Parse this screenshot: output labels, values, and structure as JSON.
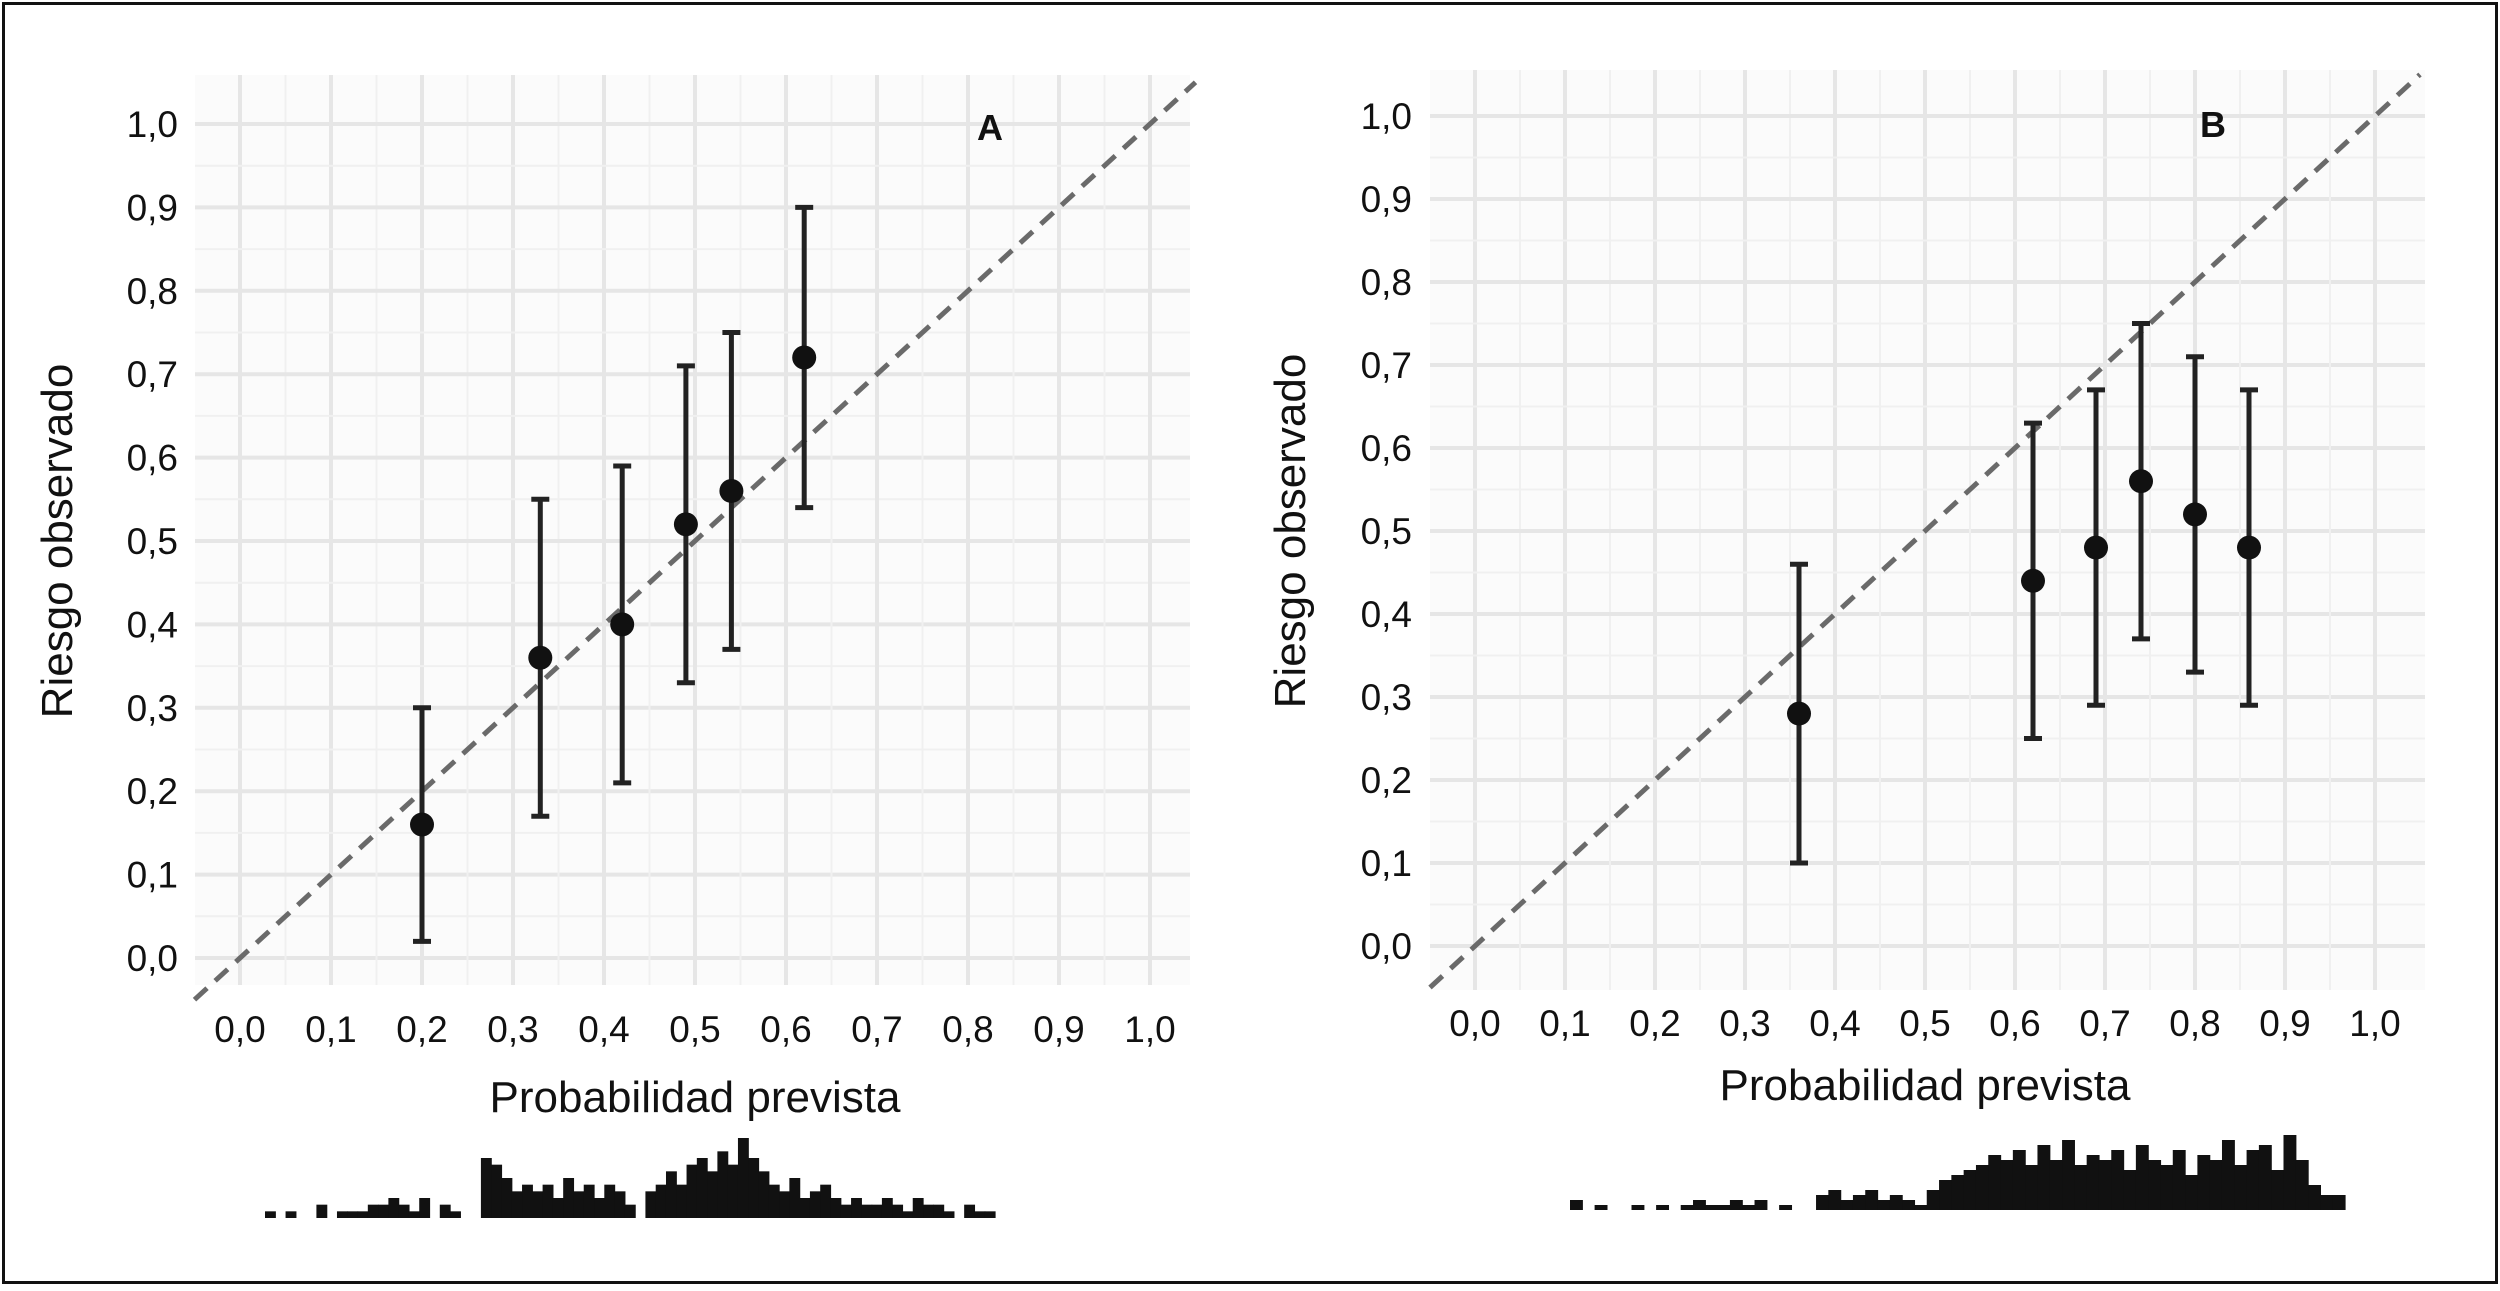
{
  "chart_data": [
    {
      "type": "scatter",
      "panel_label": "A",
      "xlabel": "Probabilidad prevista",
      "ylabel": "Riesgo observado",
      "xlim": [
        0.0,
        1.0
      ],
      "ylim": [
        0.0,
        1.0
      ],
      "x_ticks": [
        "0,0",
        "0,1",
        "0,2",
        "0,3",
        "0,4",
        "0,5",
        "0,6",
        "0,7",
        "0,8",
        "0,9",
        "1,0"
      ],
      "y_ticks": [
        "0,0",
        "0,1",
        "0,2",
        "0,3",
        "0,4",
        "0,5",
        "0,6",
        "0,7",
        "0,8",
        "0,9",
        "1,0"
      ],
      "grid": true,
      "reference_line": "dashed diagonal y = x",
      "points": [
        {
          "x": 0.2,
          "y": 0.16,
          "lower": 0.02,
          "upper": 0.3
        },
        {
          "x": 0.33,
          "y": 0.36,
          "lower": 0.17,
          "upper": 0.55
        },
        {
          "x": 0.42,
          "y": 0.4,
          "lower": 0.21,
          "upper": 0.59
        },
        {
          "x": 0.49,
          "y": 0.52,
          "lower": 0.33,
          "upper": 0.71
        },
        {
          "x": 0.54,
          "y": 0.56,
          "lower": 0.37,
          "upper": 0.75
        },
        {
          "x": 0.62,
          "y": 0.72,
          "lower": 0.54,
          "upper": 0.9
        }
      ],
      "histogram": [
        1,
        0,
        1,
        0,
        0,
        2,
        0,
        1,
        1,
        1,
        2,
        2,
        3,
        2,
        1,
        3,
        0,
        2,
        1,
        0,
        0,
        9,
        8,
        6,
        4,
        5,
        4,
        5,
        3,
        6,
        4,
        5,
        3,
        5,
        4,
        2,
        0,
        4,
        5,
        7,
        5,
        8,
        9,
        7,
        10,
        8,
        12,
        9,
        7,
        5,
        4,
        6,
        3,
        4,
        5,
        3,
        2,
        3,
        2,
        2,
        3,
        2,
        1,
        3,
        2,
        2,
        1,
        0,
        2,
        1,
        1
      ],
      "hist_xlim": [
        0.04,
        0.87
      ]
    },
    {
      "type": "scatter",
      "panel_label": "B",
      "xlabel": "Probabilidad prevista",
      "ylabel": "Riesgo observado",
      "xlim": [
        0.0,
        1.0
      ],
      "ylim": [
        0.0,
        1.0
      ],
      "x_ticks": [
        "0,0",
        "0,1",
        "0,2",
        "0,3",
        "0,4",
        "0,5",
        "0,6",
        "0,7",
        "0,8",
        "0,9",
        "1,0"
      ],
      "y_ticks": [
        "0,0",
        "0,1",
        "0,2",
        "0,3",
        "0,4",
        "0,5",
        "0,6",
        "0,7",
        "0,8",
        "0,9",
        "1,0"
      ],
      "grid": true,
      "reference_line": "dashed diagonal y = x",
      "points": [
        {
          "x": 0.36,
          "y": 0.28,
          "lower": 0.1,
          "upper": 0.46
        },
        {
          "x": 0.62,
          "y": 0.44,
          "lower": 0.25,
          "upper": 0.63
        },
        {
          "x": 0.69,
          "y": 0.48,
          "lower": 0.29,
          "upper": 0.67
        },
        {
          "x": 0.74,
          "y": 0.56,
          "lower": 0.37,
          "upper": 0.75
        },
        {
          "x": 0.8,
          "y": 0.52,
          "lower": 0.33,
          "upper": 0.71
        },
        {
          "x": 0.86,
          "y": 0.48,
          "lower": 0.29,
          "upper": 0.67
        }
      ],
      "histogram": [
        2,
        0,
        1,
        0,
        0,
        1,
        0,
        1,
        0,
        1,
        2,
        1,
        1,
        2,
        1,
        2,
        0,
        1,
        0,
        0,
        3,
        4,
        2,
        3,
        4,
        2,
        3,
        2,
        1,
        4,
        6,
        7,
        8,
        9,
        11,
        10,
        12,
        9,
        13,
        10,
        14,
        9,
        11,
        10,
        12,
        8,
        13,
        10,
        9,
        12,
        7,
        11,
        10,
        14,
        9,
        12,
        13,
        8,
        15,
        10,
        5,
        3,
        3
      ],
      "hist_xlim": [
        0.13,
        0.96
      ]
    }
  ]
}
